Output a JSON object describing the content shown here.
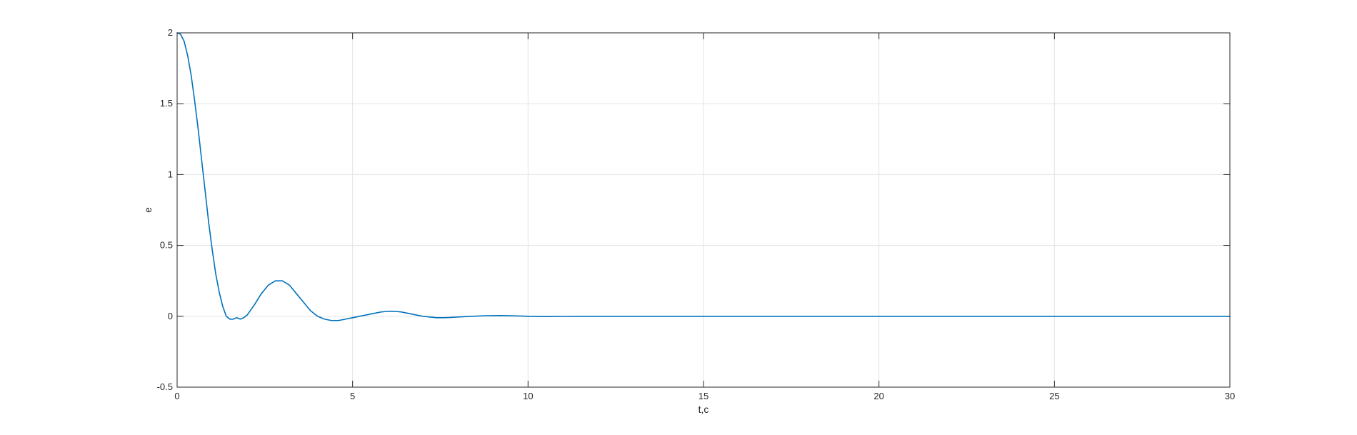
{
  "chart_data": {
    "type": "line",
    "title": "",
    "xlabel": "t,c",
    "ylabel": "e",
    "xlim": [
      0,
      30
    ],
    "ylim": [
      -0.5,
      2
    ],
    "xticks": [
      0,
      5,
      10,
      15,
      20,
      25,
      30
    ],
    "yticks": [
      -0.5,
      0,
      0.5,
      1,
      1.5,
      2
    ],
    "xtick_labels": [
      "0",
      "5",
      "10",
      "15",
      "20",
      "25",
      "30"
    ],
    "ytick_labels": [
      "-0.5",
      "0",
      "0.5",
      "1",
      "1.5",
      "2"
    ],
    "grid": true,
    "series": [
      {
        "color": "#0072BD",
        "x": [
          0,
          0.1,
          0.2,
          0.3,
          0.4,
          0.5,
          0.6,
          0.7,
          0.8,
          0.9,
          1.0,
          1.1,
          1.2,
          1.3,
          1.4,
          1.5,
          1.6,
          1.7,
          1.8,
          1.9,
          2.0,
          2.2,
          2.4,
          2.6,
          2.8,
          3.0,
          3.2,
          3.4,
          3.6,
          3.8,
          4.0,
          4.2,
          4.4,
          4.6,
          4.8,
          5.0,
          5.2,
          5.4,
          5.6,
          5.8,
          6.0,
          6.2,
          6.4,
          6.6,
          6.8,
          7.0,
          7.2,
          7.4,
          7.6,
          7.8,
          8.0,
          8.4,
          8.8,
          9.2,
          9.6,
          10.0,
          10.5,
          11,
          11.5,
          12,
          13,
          14,
          15,
          16,
          17,
          18,
          19,
          20,
          21,
          22,
          23,
          24,
          25,
          26,
          27,
          28,
          29,
          30
        ],
        "y": [
          2.0,
          1.99,
          1.94,
          1.84,
          1.7,
          1.52,
          1.32,
          1.1,
          0.88,
          0.66,
          0.47,
          0.3,
          0.17,
          0.07,
          0.0,
          -0.02,
          -0.02,
          -0.01,
          -0.02,
          -0.01,
          0.01,
          0.08,
          0.16,
          0.22,
          0.25,
          0.25,
          0.22,
          0.16,
          0.1,
          0.04,
          0.0,
          -0.02,
          -0.03,
          -0.03,
          -0.02,
          -0.01,
          0.0,
          0.01,
          0.02,
          0.03,
          0.035,
          0.035,
          0.03,
          0.02,
          0.01,
          0.0,
          -0.005,
          -0.01,
          -0.01,
          -0.008,
          -0.005,
          0.0,
          0.004,
          0.005,
          0.003,
          0.0,
          -0.002,
          -0.001,
          0.0,
          0.0,
          0.0,
          0.0,
          0.0,
          0.0,
          0.0,
          0.0,
          0.0,
          0.0,
          0.0,
          0.0,
          0.0,
          0.0,
          0.0,
          0.0,
          0.0,
          0.0,
          0.0,
          0.0
        ]
      }
    ]
  }
}
